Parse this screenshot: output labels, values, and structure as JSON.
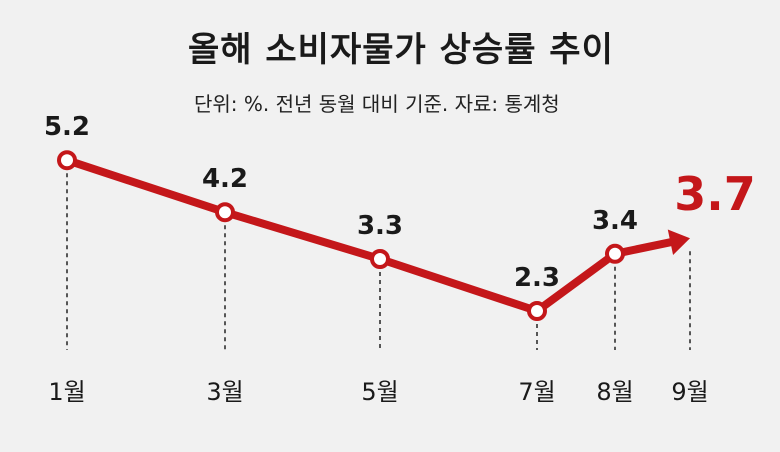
{
  "title": "올해 소비자물가 상승률 추이",
  "subtitle": "단위: %. 전년 동월 대비 기준.  자료: 통계청",
  "colors": {
    "line": "#c4171a",
    "marker_fill": "#ffffff",
    "text": "#1a1a1a",
    "background": "#f1f1f1"
  },
  "chart_data": {
    "type": "line",
    "title": "올해 소비자물가 상승률 추이",
    "unit": "%",
    "categories": [
      "1월",
      "3월",
      "5월",
      "7월",
      "8월",
      "9월"
    ],
    "values": [
      5.2,
      4.2,
      3.3,
      2.3,
      3.4,
      3.7
    ],
    "value_labels": [
      "5.2",
      "4.2",
      "3.3",
      "2.3",
      "3.4",
      "3.7"
    ],
    "last_point_style": "arrow",
    "ylim": [
      2.0,
      5.5
    ],
    "grid": false,
    "legend": "none"
  }
}
